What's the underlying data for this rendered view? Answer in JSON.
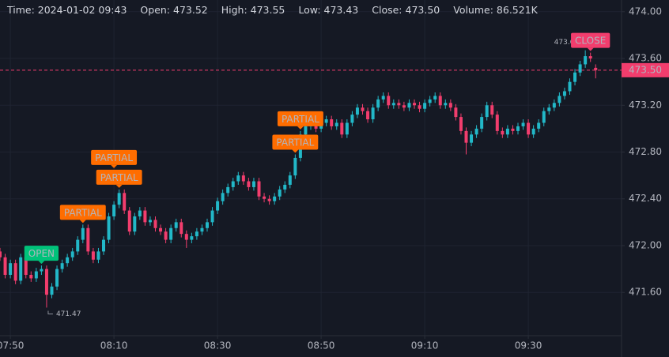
{
  "chart_data": {
    "type": "candlestick",
    "header": [
      "Time: 2024-01-02 09:43",
      "Open: 473.52",
      "High: 473.55",
      "Low: 473.43",
      "Close: 473.50",
      "Volume: 86.521K"
    ],
    "x": [
      "07:48",
      "07:49",
      "07:50",
      "07:51",
      "07:52",
      "07:53",
      "07:54",
      "07:55",
      "07:56",
      "07:57",
      "07:58",
      "07:59",
      "08:00",
      "08:01",
      "08:02",
      "08:03",
      "08:04",
      "08:05",
      "08:06",
      "08:07",
      "08:08",
      "08:09",
      "08:10",
      "08:11",
      "08:12",
      "08:13",
      "08:14",
      "08:15",
      "08:16",
      "08:17",
      "08:18",
      "08:19",
      "08:20",
      "08:21",
      "08:22",
      "08:23",
      "08:24",
      "08:25",
      "08:26",
      "08:27",
      "08:28",
      "08:29",
      "08:30",
      "08:31",
      "08:32",
      "08:33",
      "08:34",
      "08:35",
      "08:36",
      "08:37",
      "08:38",
      "08:39",
      "08:40",
      "08:41",
      "08:42",
      "08:43",
      "08:44",
      "08:45",
      "08:46",
      "08:47",
      "08:48",
      "08:49",
      "08:50",
      "08:51",
      "08:52",
      "08:53",
      "08:54",
      "08:55",
      "08:56",
      "08:57",
      "08:58",
      "08:59",
      "09:00",
      "09:01",
      "09:02",
      "09:03",
      "09:04",
      "09:05",
      "09:06",
      "09:07",
      "09:08",
      "09:09",
      "09:10",
      "09:11",
      "09:12",
      "09:13",
      "09:14",
      "09:15",
      "09:16",
      "09:17",
      "09:18",
      "09:19",
      "09:20",
      "09:21",
      "09:22",
      "09:23",
      "09:24",
      "09:25",
      "09:26",
      "09:27",
      "09:28",
      "09:29",
      "09:30",
      "09:31",
      "09:32",
      "09:33",
      "09:34",
      "09:35",
      "09:36",
      "09:37",
      "09:38",
      "09:39",
      "09:40",
      "09:41",
      "09:42",
      "09:43"
    ],
    "open": [
      471.95,
      471.9,
      471.75,
      471.85,
      471.7,
      471.9,
      471.75,
      471.72,
      471.78,
      471.8,
      471.58,
      471.65,
      471.8,
      471.85,
      471.9,
      471.95,
      472.05,
      472.15,
      471.95,
      471.88,
      471.95,
      472.05,
      472.25,
      472.35,
      472.45,
      472.3,
      472.12,
      472.25,
      472.3,
      472.2,
      472.22,
      472.15,
      472.12,
      472.05,
      472.15,
      472.2,
      472.1,
      472.05,
      472.08,
      472.12,
      472.15,
      472.2,
      472.3,
      472.38,
      472.45,
      472.5,
      472.55,
      472.6,
      472.55,
      472.5,
      472.55,
      472.42,
      472.4,
      472.38,
      472.42,
      472.48,
      472.52,
      472.6,
      472.75,
      472.95,
      473.02,
      473.05,
      473.0,
      473.05,
      473.08,
      473.02,
      473.05,
      472.95,
      473.05,
      473.12,
      473.18,
      473.15,
      473.08,
      473.18,
      473.25,
      473.28,
      473.2,
      473.22,
      473.2,
      473.18,
      473.22,
      473.2,
      473.17,
      473.22,
      473.25,
      473.28,
      473.2,
      473.22,
      473.18,
      473.1,
      472.98,
      472.88,
      472.95,
      473.0,
      473.1,
      473.2,
      473.12,
      472.98,
      472.95,
      473.0,
      472.98,
      473.02,
      473.05,
      472.95,
      473.0,
      473.05,
      473.15,
      473.18,
      473.22,
      473.28,
      473.32,
      473.4,
      473.48,
      473.55,
      473.62,
      473.52
    ],
    "high": [
      471.98,
      471.93,
      471.88,
      471.88,
      471.93,
      471.93,
      471.78,
      471.81,
      471.83,
      471.83,
      471.68,
      471.83,
      471.88,
      471.93,
      471.98,
      472.08,
      472.18,
      472.18,
      471.98,
      471.98,
      472.08,
      472.28,
      472.38,
      472.48,
      472.48,
      472.33,
      472.28,
      472.33,
      472.33,
      472.25,
      472.25,
      472.18,
      472.15,
      472.18,
      472.23,
      472.23,
      472.13,
      472.11,
      472.15,
      472.18,
      472.23,
      472.33,
      472.41,
      472.48,
      472.53,
      472.58,
      472.63,
      472.63,
      472.58,
      472.58,
      472.58,
      472.45,
      472.43,
      472.45,
      472.51,
      472.55,
      472.63,
      472.78,
      472.98,
      473.05,
      473.08,
      473.08,
      473.08,
      473.11,
      473.11,
      473.08,
      473.08,
      473.08,
      473.15,
      473.21,
      473.21,
      473.18,
      473.21,
      473.28,
      473.31,
      473.31,
      473.25,
      473.25,
      473.23,
      473.25,
      473.25,
      473.23,
      473.25,
      473.28,
      473.31,
      473.31,
      473.25,
      473.25,
      473.21,
      473.13,
      473.01,
      472.98,
      473.03,
      473.13,
      473.23,
      473.23,
      473.15,
      473.01,
      473.03,
      473.03,
      473.05,
      473.08,
      473.08,
      473.03,
      473.08,
      473.18,
      473.21,
      473.25,
      473.31,
      473.35,
      473.43,
      473.51,
      473.58,
      473.67,
      473.65,
      473.55
    ],
    "low": [
      471.87,
      471.72,
      471.72,
      471.67,
      471.67,
      471.72,
      471.69,
      471.69,
      471.75,
      471.47,
      471.55,
      471.62,
      471.77,
      471.82,
      471.87,
      471.92,
      472.02,
      471.92,
      471.85,
      471.85,
      471.92,
      472.02,
      472.22,
      472.32,
      472.27,
      472.09,
      472.09,
      472.22,
      472.17,
      472.17,
      472.12,
      472.09,
      472.02,
      472.02,
      472.12,
      472.07,
      471.98,
      472.02,
      472.05,
      472.09,
      472.12,
      472.17,
      472.27,
      472.35,
      472.42,
      472.47,
      472.52,
      472.52,
      472.47,
      472.47,
      472.39,
      472.37,
      472.35,
      472.35,
      472.39,
      472.45,
      472.49,
      472.57,
      472.72,
      472.92,
      472.99,
      472.97,
      472.97,
      473.02,
      472.99,
      472.99,
      472.92,
      472.92,
      473.02,
      473.09,
      473.12,
      473.05,
      473.05,
      473.15,
      473.22,
      473.17,
      473.17,
      473.17,
      473.15,
      473.15,
      473.17,
      473.14,
      473.14,
      473.19,
      473.22,
      473.17,
      473.17,
      473.15,
      473.07,
      472.95,
      472.78,
      472.85,
      472.92,
      472.97,
      473.07,
      473.09,
      472.95,
      472.92,
      472.92,
      472.95,
      472.95,
      472.99,
      472.92,
      472.92,
      472.97,
      473.02,
      473.12,
      473.15,
      473.19,
      473.25,
      473.29,
      473.37,
      473.45,
      473.52,
      473.57,
      473.43
    ],
    "close": [
      471.9,
      471.75,
      471.85,
      471.7,
      471.9,
      471.75,
      471.72,
      471.78,
      471.8,
      471.58,
      471.65,
      471.8,
      471.85,
      471.9,
      471.95,
      472.05,
      472.15,
      471.95,
      471.88,
      471.95,
      472.05,
      472.25,
      472.35,
      472.45,
      472.3,
      472.12,
      472.25,
      472.3,
      472.2,
      472.22,
      472.15,
      472.12,
      472.05,
      472.15,
      472.2,
      472.1,
      472.05,
      472.08,
      472.12,
      472.15,
      472.2,
      472.3,
      472.38,
      472.45,
      472.5,
      472.55,
      472.6,
      472.55,
      472.5,
      472.55,
      472.42,
      472.4,
      472.38,
      472.42,
      472.48,
      472.52,
      472.6,
      472.75,
      472.95,
      473.02,
      473.05,
      473.0,
      473.05,
      473.08,
      473.02,
      473.05,
      472.95,
      473.05,
      473.12,
      473.18,
      473.15,
      473.08,
      473.18,
      473.25,
      473.28,
      473.2,
      473.22,
      473.2,
      473.18,
      473.22,
      473.2,
      473.17,
      473.22,
      473.25,
      473.28,
      473.2,
      473.22,
      473.18,
      473.1,
      472.98,
      472.88,
      472.95,
      473.0,
      473.1,
      473.2,
      473.12,
      472.98,
      472.95,
      473.0,
      472.98,
      473.02,
      473.05,
      472.95,
      473.0,
      473.05,
      473.15,
      473.18,
      473.22,
      473.28,
      473.32,
      473.4,
      473.48,
      473.55,
      473.62,
      473.6,
      473.5
    ],
    "up_color": "#22b8c8",
    "down_color": "#f23d6d",
    "xlim": [
      "07:48",
      "09:48"
    ],
    "xticks": [
      "07:50",
      "08:10",
      "08:30",
      "08:50",
      "09:10",
      "09:30"
    ],
    "ylim": [
      471.23,
      474.1
    ],
    "yticks": [
      {
        "value": 471.6,
        "label": "471.60"
      },
      {
        "value": 472,
        "label": "472.00"
      },
      {
        "value": 472.4,
        "label": "472.40"
      },
      {
        "value": 472.8,
        "label": "472.80"
      },
      {
        "value": 473.2,
        "label": "473.20"
      },
      {
        "value": 473.6,
        "label": "473.60"
      },
      {
        "value": 474,
        "label": "474.00"
      }
    ],
    "grid": true,
    "last_price": {
      "value": 473.5,
      "label": "473.50"
    },
    "markers": [
      {
        "label": "OPEN",
        "x": "07:56",
        "color": "#00c27a"
      },
      {
        "label": "PARTIAL",
        "x": "08:04",
        "color": "#ff6d00"
      },
      {
        "label": "PARTIAL",
        "x": "08:11",
        "color": "#ff6d00"
      },
      {
        "label": "PARTIAL",
        "x": "08:10",
        "color": "#ff6d00"
      },
      {
        "label": "PARTIAL",
        "x": "08:45",
        "color": "#ff6d00"
      },
      {
        "label": "PARTIAL",
        "x": "08:46",
        "color": "#ff6d00"
      },
      {
        "label": "CLOSE",
        "x": "09:42",
        "color": "#f23d6d"
      }
    ]
  }
}
